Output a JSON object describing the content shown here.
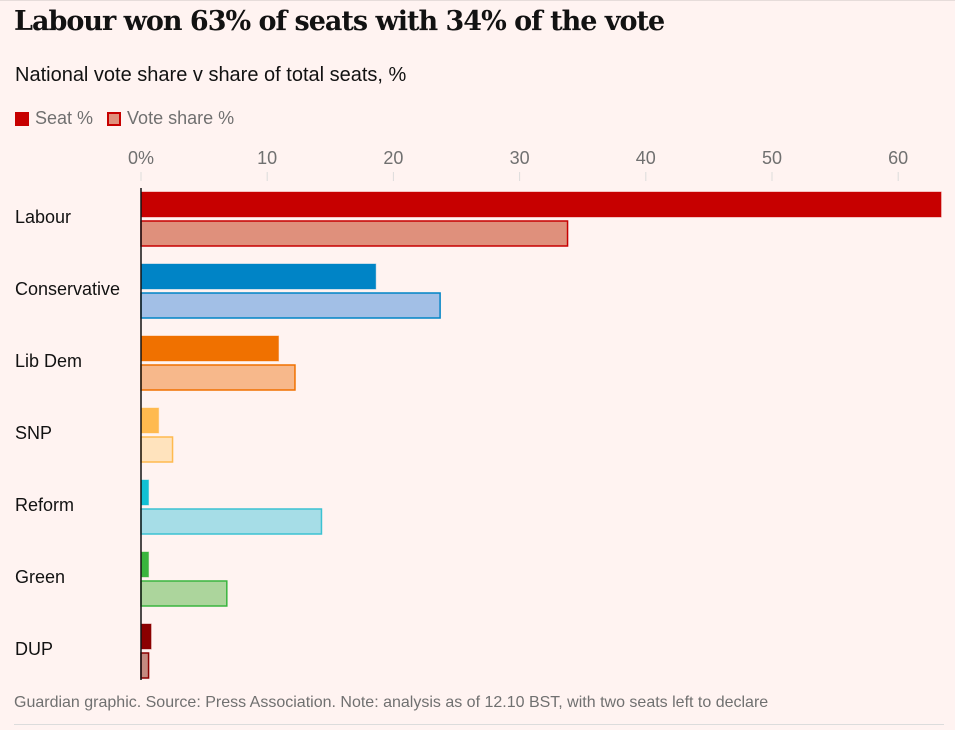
{
  "title": "Labour won 63% of seats with 34% of the vote",
  "subtitle": "National vote share v share of total seats, %",
  "legend": [
    {
      "label": "Seat %",
      "fill": "#c70000",
      "stroke": "#c70000"
    },
    {
      "label": "Vote share %",
      "fill": "#df907c",
      "stroke": "#c70000"
    }
  ],
  "footer": "Guardian graphic. Source: Press Association. Note: analysis as of 12.10 BST, with two seats left to declare",
  "chart_data": {
    "type": "bar",
    "orientation": "horizontal",
    "title": "Labour won 63% of seats with 34% of the vote",
    "subtitle": "National vote share v share of total seats, %",
    "xlabel": "",
    "ylabel": "",
    "xlim": [
      0,
      63.4
    ],
    "ticks": [
      0,
      10,
      20,
      30,
      40,
      50,
      60
    ],
    "tick_labels": [
      "0%",
      "10",
      "20",
      "30",
      "40",
      "50",
      "60"
    ],
    "grid": false,
    "legend_position": "top-left",
    "categories": [
      "Labour",
      "Conservative",
      "Lib Dem",
      "SNP",
      "Reform",
      "Green",
      "DUP"
    ],
    "series": [
      {
        "name": "Seat %",
        "values": [
          63.4,
          18.6,
          10.9,
          1.4,
          0.6,
          0.6,
          0.8
        ]
      },
      {
        "name": "Vote share %",
        "values": [
          33.8,
          23.7,
          12.2,
          2.5,
          14.3,
          6.8,
          0.6
        ]
      }
    ],
    "colors": {
      "Labour": {
        "seat": "#c70000",
        "vote": "#df907c",
        "stroke": "#c70000"
      },
      "Conservative": {
        "seat": "#0084c6",
        "vote": "#a2bfe6",
        "stroke": "#0084c6"
      },
      "Lib Dem": {
        "seat": "#f07100",
        "vote": "#f7b88b",
        "stroke": "#f07100"
      },
      "SNP": {
        "seat": "#ffba4f",
        "vote": "#ffe3bd",
        "stroke": "#ffba4f"
      },
      "Reform": {
        "seat": "#12c0d4",
        "vote": "#a6dde7",
        "stroke": "#3cc2d2"
      },
      "Green": {
        "seat": "#39b53e",
        "vote": "#acd59c",
        "stroke": "#39b53e"
      },
      "DUP": {
        "seat": "#8b0000",
        "vote": "#c48a80",
        "stroke": "#8b0000"
      }
    }
  }
}
